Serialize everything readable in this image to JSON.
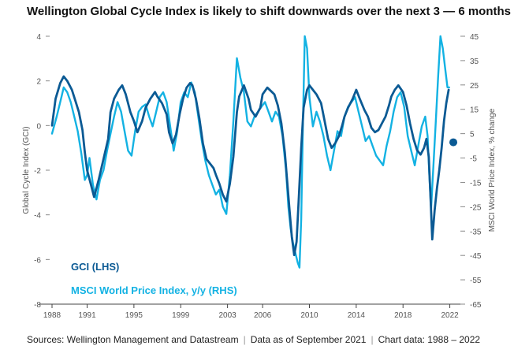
{
  "title": "Wellington Global Cycle Index is likely to shift downwards over the next 3 — 6 months",
  "footer": {
    "sources": "Sources: Wellington Management and Datastream",
    "data_as_of": "Data as of September 2021",
    "chart_data_range": "Chart data: 1988 – 2022"
  },
  "colors": {
    "gci": "#0B5A94",
    "msci": "#13B2E3",
    "axis": "#555555",
    "grid": "#E6E6E6"
  },
  "chart_data": {
    "type": "line",
    "title": "Wellington Global Cycle Index is likely to shift downwards over the next 3 — 6 months",
    "ylabel_left": "Global Cycle Index (GCI)",
    "ylabel_right": "MSCI World Price Index, % change",
    "xlabel": "",
    "x_ticks": [
      "1988",
      "1991",
      "1995",
      "1999",
      "2003",
      "2006",
      "2010",
      "2014",
      "2018",
      "2022"
    ],
    "x_tick_values": [
      1988,
      1991,
      1995,
      1999,
      2003,
      2006,
      2010,
      2014,
      2018,
      2022
    ],
    "y_left_ticks": [
      "4",
      "2",
      "0",
      "-2",
      "-4",
      "-6",
      "-8"
    ],
    "y_left_values": [
      4,
      2,
      0,
      -2,
      -4,
      -6,
      -8
    ],
    "y_right_ticks": [
      "45",
      "35",
      "25",
      "15",
      "5",
      "-5",
      "-15",
      "-25",
      "-35",
      "-45",
      "-55",
      "-65"
    ],
    "y_right_values": [
      45,
      35,
      25,
      15,
      5,
      -5,
      -15,
      -25,
      -35,
      -45,
      -55,
      -65
    ],
    "xlim": [
      1988,
      2022.5
    ],
    "ylim_left": [
      -8,
      4
    ],
    "ylim_right": [
      -65,
      45
    ],
    "legend_placement": "bottom-left",
    "grid": false,
    "series": [
      {
        "name": "GCI (LHS)",
        "axis": "left",
        "x": [
          1988.0,
          1988.3,
          1988.7,
          1989.0,
          1989.3,
          1989.7,
          1990.0,
          1990.3,
          1990.6,
          1990.8,
          1991.0,
          1991.3,
          1991.6,
          1992.0,
          1992.4,
          1992.8,
          1993.0,
          1993.3,
          1993.7,
          1994.0,
          1994.3,
          1994.7,
          1995.0,
          1995.3,
          1995.7,
          1996.0,
          1996.4,
          1996.8,
          1997.0,
          1997.4,
          1997.8,
          1998.0,
          1998.3,
          1998.6,
          1998.9,
          1999.2,
          1999.5,
          1999.8,
          2000.0,
          2000.3,
          2000.6,
          2000.9,
          2001.2,
          2001.5,
          2001.8,
          2002.0,
          2002.3,
          2002.6,
          2002.9,
          2003.2,
          2003.5,
          2003.8,
          2004.0,
          2004.4,
          2004.8,
          2005.0,
          2005.4,
          2005.8,
          2006.0,
          2006.4,
          2006.8,
          2007.0,
          2007.3,
          2007.6,
          2007.9,
          2008.1,
          2008.3,
          2008.5,
          2008.7,
          2008.9,
          2009.1,
          2009.3,
          2009.5,
          2009.8,
          2010.0,
          2010.3,
          2010.6,
          2011.0,
          2011.3,
          2011.6,
          2011.9,
          2012.2,
          2012.5,
          2012.8,
          2013.0,
          2013.3,
          2013.7,
          2014.0,
          2014.3,
          2014.7,
          2015.0,
          2015.3,
          2015.6,
          2015.9,
          2016.2,
          2016.5,
          2016.8,
          2017.0,
          2017.3,
          2017.6,
          2018.0,
          2018.3,
          2018.6,
          2018.9,
          2019.2,
          2019.5,
          2019.8,
          2020.0,
          2020.2,
          2020.35,
          2020.5,
          2020.7,
          2020.9,
          2021.1,
          2021.3,
          2021.5,
          2021.7,
          2021.9
        ],
        "values": [
          0.0,
          1.2,
          1.9,
          2.2,
          2.0,
          1.6,
          1.1,
          0.6,
          -0.2,
          -1.2,
          -2.0,
          -2.6,
          -3.2,
          -2.4,
          -1.5,
          -0.6,
          0.6,
          1.2,
          1.6,
          1.8,
          1.4,
          0.6,
          0.2,
          -0.3,
          0.2,
          0.8,
          1.2,
          1.5,
          1.3,
          1.0,
          0.5,
          -0.3,
          -0.8,
          -0.4,
          0.5,
          1.2,
          1.7,
          1.9,
          1.8,
          1.2,
          0.3,
          -0.8,
          -1.5,
          -1.7,
          -1.9,
          -2.2,
          -2.6,
          -3.1,
          -3.4,
          -2.6,
          -1.4,
          0.6,
          1.3,
          1.8,
          1.2,
          0.7,
          0.4,
          0.8,
          1.4,
          1.7,
          1.5,
          1.4,
          0.9,
          0.1,
          -1.2,
          -2.5,
          -3.8,
          -5.0,
          -5.8,
          -5.2,
          -3.2,
          -1.0,
          0.8,
          1.6,
          1.8,
          1.6,
          1.4,
          1.0,
          0.2,
          -0.6,
          -1.0,
          -0.8,
          -0.5,
          0.0,
          0.4,
          0.8,
          1.2,
          1.6,
          1.2,
          0.7,
          0.4,
          -0.1,
          -0.3,
          -0.2,
          0.1,
          0.4,
          0.9,
          1.3,
          1.6,
          1.8,
          1.5,
          0.9,
          0.1,
          -0.6,
          -1.1,
          -1.3,
          -1.0,
          -0.6,
          -1.4,
          -3.2,
          -5.1,
          -3.8,
          -2.8,
          -2.0,
          -1.0,
          0.2,
          1.0,
          1.6
        ]
      },
      {
        "name": "MSCI World Price Index, y/y (RHS)",
        "axis": "right",
        "x": [
          1988.0,
          1988.4,
          1988.8,
          1989.0,
          1989.3,
          1989.6,
          1989.9,
          1990.2,
          1990.5,
          1990.8,
          1991.0,
          1991.2,
          1991.5,
          1991.8,
          1992.1,
          1992.4,
          1992.7,
          1993.0,
          1993.3,
          1993.6,
          1993.9,
          1994.2,
          1994.5,
          1994.8,
          1995.1,
          1995.4,
          1995.7,
          1996.0,
          1996.3,
          1996.6,
          1996.9,
          1997.2,
          1997.5,
          1997.8,
          1998.1,
          1998.4,
          1998.7,
          1999.0,
          1999.3,
          1999.6,
          1999.9,
          2000.2,
          2000.5,
          2000.8,
          2001.1,
          2001.4,
          2001.7,
          2002.0,
          2002.3,
          2002.6,
          2002.9,
          2003.2,
          2003.5,
          2003.8,
          2004.1,
          2004.4,
          2004.7,
          2005.0,
          2005.3,
          2005.6,
          2005.9,
          2006.2,
          2006.5,
          2006.8,
          2007.1,
          2007.4,
          2007.7,
          2008.0,
          2008.2,
          2008.4,
          2008.6,
          2008.8,
          2009.0,
          2009.15,
          2009.3,
          2009.45,
          2009.6,
          2009.8,
          2010.0,
          2010.3,
          2010.6,
          2010.9,
          2011.2,
          2011.5,
          2011.8,
          2012.1,
          2012.4,
          2012.7,
          2013.0,
          2013.3,
          2013.6,
          2013.9,
          2014.2,
          2014.5,
          2014.8,
          2015.1,
          2015.4,
          2015.7,
          2016.0,
          2016.3,
          2016.6,
          2016.9,
          2017.2,
          2017.5,
          2017.8,
          2018.1,
          2018.4,
          2018.7,
          2019.0,
          2019.3,
          2019.6,
          2019.9,
          2020.1,
          2020.25,
          2020.4,
          2020.6,
          2020.8,
          2021.0,
          2021.2,
          2021.4,
          2021.6,
          2021.8,
          2021.95
        ],
        "values": [
          5,
          12,
          20,
          24,
          22,
          18,
          12,
          6,
          -3,
          -14,
          -12,
          -5,
          -16,
          -22,
          -14,
          -10,
          -2,
          5,
          12,
          18,
          14,
          6,
          -2,
          -4,
          6,
          14,
          16,
          17,
          12,
          8,
          14,
          20,
          22,
          18,
          8,
          -2,
          6,
          18,
          22,
          20,
          26,
          22,
          12,
          2,
          -6,
          -12,
          -16,
          -20,
          -18,
          -25,
          -28,
          -12,
          10,
          36,
          28,
          22,
          10,
          8,
          12,
          14,
          16,
          18,
          14,
          10,
          14,
          12,
          4,
          -10,
          -25,
          -34,
          -40,
          -44,
          -48,
          -50,
          -30,
          10,
          45,
          40,
          20,
          8,
          14,
          10,
          4,
          -4,
          -10,
          -2,
          6,
          4,
          12,
          16,
          18,
          20,
          14,
          8,
          2,
          4,
          0,
          -4,
          -6,
          -8,
          0,
          6,
          14,
          20,
          22,
          16,
          4,
          -2,
          -8,
          0,
          8,
          12,
          4,
          -12,
          -26,
          -8,
          10,
          28,
          45,
          40,
          32,
          24,
          24
        ]
      }
    ],
    "markers": [
      {
        "series": "GCI (LHS)",
        "x": 2022.3,
        "value": -0.75
      }
    ]
  }
}
